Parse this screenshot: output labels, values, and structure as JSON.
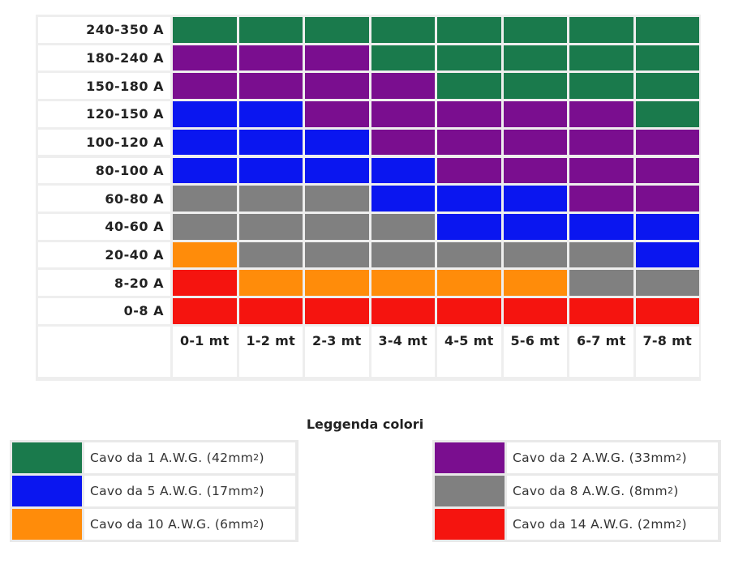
{
  "chart_data": {
    "type": "heatmap",
    "rows": [
      "240-350 A",
      "180-240 A",
      "150-180 A",
      "120-150 A",
      "100-120 A",
      "80-100 A",
      "60-80 A",
      "40-60 A",
      "20-40 A",
      "8-20 A",
      "0-8 A"
    ],
    "columns": [
      "0-1 mt",
      "1-2 mt",
      "2-3 mt",
      "3-4 mt",
      "4-5 mt",
      "5-6 mt",
      "6-7 mt",
      "7-8 mt"
    ],
    "cells": [
      [
        "1",
        "1",
        "1",
        "1",
        "1",
        "1",
        "1",
        "1"
      ],
      [
        "2",
        "2",
        "2",
        "1",
        "1",
        "1",
        "1",
        "1"
      ],
      [
        "2",
        "2",
        "2",
        "2",
        "1",
        "1",
        "1",
        "1"
      ],
      [
        "5",
        "5",
        "2",
        "2",
        "2",
        "2",
        "2",
        "1"
      ],
      [
        "5",
        "5",
        "5",
        "2",
        "2",
        "2",
        "2",
        "2"
      ],
      [
        "5",
        "5",
        "5",
        "5",
        "2",
        "2",
        "2",
        "2"
      ],
      [
        "8",
        "8",
        "8",
        "5",
        "5",
        "5",
        "2",
        "2"
      ],
      [
        "8",
        "8",
        "8",
        "8",
        "5",
        "5",
        "5",
        "5"
      ],
      [
        "10",
        "8",
        "8",
        "8",
        "8",
        "8",
        "8",
        "5"
      ],
      [
        "14",
        "10",
        "10",
        "10",
        "10",
        "10",
        "8",
        "8"
      ],
      [
        "14",
        "14",
        "14",
        "14",
        "14",
        "14",
        "14",
        "14"
      ]
    ],
    "legend_title": "Leggenda colori",
    "legend": [
      {
        "key": "1",
        "label": "Cavo da 1 A.W.G. (42mm",
        "sup": "2",
        "suffix": ")",
        "color": "#1a7a4c"
      },
      {
        "key": "2",
        "label": "Cavo da 2 A.W.G. (33mm",
        "sup": "2",
        "suffix": ")",
        "color": "#7a0e8f"
      },
      {
        "key": "5",
        "label": "Cavo da 5 A.W.G. (17mm",
        "sup": "2",
        "suffix": ")",
        "color": "#0a16f0"
      },
      {
        "key": "8",
        "label": "Cavo da 8 A.W.G. (8mm",
        "sup": "2",
        "suffix": ")",
        "color": "#808080"
      },
      {
        "key": "10",
        "label": "Cavo da 10 A.W.G. (6mm",
        "sup": "2",
        "suffix": ")",
        "color": "#ff8c0a"
      },
      {
        "key": "14",
        "label": "Cavo da 14 A.W.G. (2mm",
        "sup": "2",
        "suffix": ")",
        "color": "#f5140f"
      }
    ]
  }
}
